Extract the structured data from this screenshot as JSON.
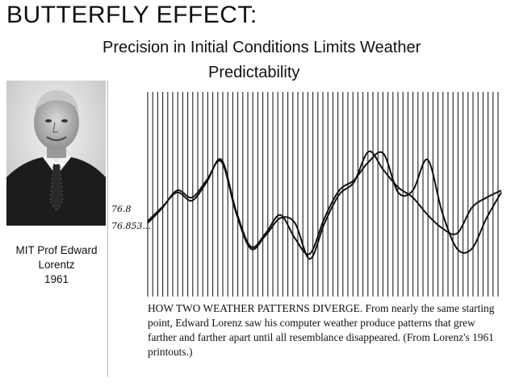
{
  "slide": {
    "title": "BUTTERFLY EFFECT:",
    "subtitle_line1": "Precision in Initial Conditions Limits Weather",
    "subtitle_line2": "Predictability"
  },
  "person": {
    "caption_line1": "MIT Prof Edward",
    "caption_line2": "Lorentz",
    "caption_line3": "1961"
  },
  "figure": {
    "y_label_1": "76.8",
    "y_label_2": "76.853...",
    "caption": "HOW TWO WEATHER PATTERNS DIVERGE. From nearly the same starting point, Edward Lorenz saw his computer weather produce patterns that grew farther and farther apart until all resemblance disappeared. (From Lorenz's 1961 printouts.)"
  },
  "chart_data": {
    "type": "line",
    "series": [
      {
        "values": [
          0.3,
          0.45,
          0.62,
          0.55,
          0.72,
          0.9,
          0.4,
          0.05,
          0.18,
          0.35,
          0.3,
          -0.05,
          0.3,
          0.58,
          0.7,
          1.0,
          0.82,
          0.65,
          0.55,
          0.38,
          0.25,
          0.2,
          0.45,
          0.55,
          0.62
        ]
      },
      {
        "values": [
          0.32,
          0.46,
          0.6,
          0.52,
          0.7,
          0.92,
          0.42,
          0.07,
          0.2,
          0.38,
          0.15,
          0.0,
          0.35,
          0.62,
          0.72,
          0.9,
          0.98,
          0.6,
          0.62,
          0.92,
          0.4,
          0.05,
          0.05,
          0.35,
          0.6
        ]
      }
    ]
  },
  "colors": {
    "ink": "#111111",
    "grid": "#222222",
    "background": "#ffffff"
  },
  "icons": {
    "portrait": "person-photo"
  }
}
